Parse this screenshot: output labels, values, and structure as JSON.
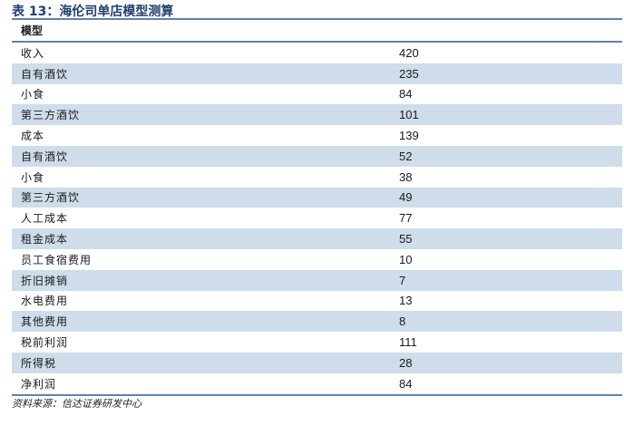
{
  "title": "表 13：海伦司单店模型测算",
  "table": {
    "header": "模型",
    "rows": [
      {
        "label": "收入",
        "value": "420"
      },
      {
        "label": "自有酒饮",
        "value": "235"
      },
      {
        "label": "小食",
        "value": "84"
      },
      {
        "label": "第三方酒饮",
        "value": "101"
      },
      {
        "label": "成本",
        "value": "139"
      },
      {
        "label": "自有酒饮",
        "value": "52"
      },
      {
        "label": "小食",
        "value": "38"
      },
      {
        "label": "第三方酒饮",
        "value": "49"
      },
      {
        "label": "人工成本",
        "value": "77"
      },
      {
        "label": "租金成本",
        "value": "55"
      },
      {
        "label": "员工食宿费用",
        "value": "10"
      },
      {
        "label": "折旧摊销",
        "value": "7"
      },
      {
        "label": "水电费用",
        "value": "13"
      },
      {
        "label": "其他费用",
        "value": "8"
      },
      {
        "label": "税前利润",
        "value": "111"
      },
      {
        "label": "所得税",
        "value": "28"
      },
      {
        "label": "净利润",
        "value": "84"
      }
    ]
  },
  "source": "资料来源：信达证券研发中心"
}
